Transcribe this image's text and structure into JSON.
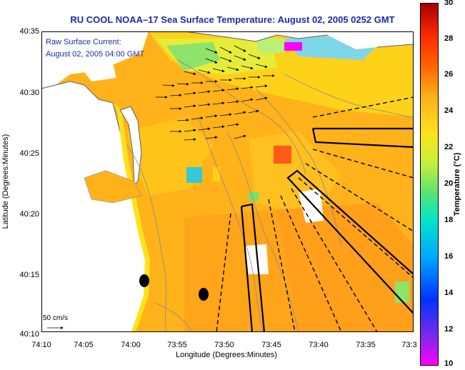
{
  "title": "RU COOL  NOAA–17  Sea Surface Temperature:  August 02, 2005 0252 GMT",
  "legend": {
    "line1": "Raw Surface Current:",
    "line2": "August 02, 2005 04:00 GMT"
  },
  "scale_label": "50 cm/s",
  "axes": {
    "xlabel": "Longitude (Degrees:Minutes)",
    "ylabel": "Latitude (Degrees:Minutes)",
    "xticks": [
      "74:10",
      "74:05",
      "74:00",
      "73:55",
      "73:50",
      "73:45",
      "73:40",
      "73:35",
      "73:3"
    ],
    "yticks": [
      "40:35",
      "40:30",
      "40:25",
      "40:20",
      "40:15",
      "40:10"
    ]
  },
  "colorbar": {
    "label": "Temperature (°C)",
    "ticks": [
      "30",
      "28",
      "26",
      "24",
      "22",
      "20",
      "18",
      "16",
      "14",
      "12",
      "10"
    ],
    "range": [
      10,
      30
    ]
  },
  "colors": {
    "land": "#ffffff",
    "ocean_warm": "#ffb21a",
    "ocean_mid": "#ffd21a",
    "cool_patch": "#6fe36e",
    "title": "#1f2aa8"
  }
}
